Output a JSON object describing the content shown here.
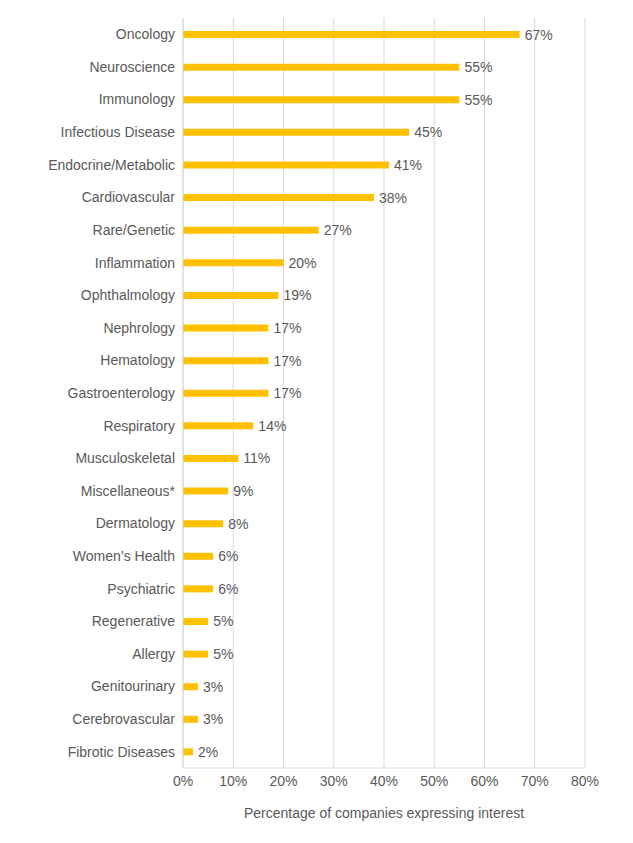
{
  "chart_data": {
    "type": "bar",
    "orientation": "horizontal",
    "x_label": "Percentage of companies expressing interest",
    "categories": [
      "Oncology",
      "Neuroscience",
      "Immunology",
      "Infectious Disease",
      "Endocrine/Metabolic",
      "Cardiovascular",
      "Rare/Genetic",
      "Inflammation",
      "Ophthalmology",
      "Nephrology",
      "Hematology",
      "Gastroenterology",
      "Respiratory",
      "Musculoskeletal",
      "Miscellaneous*",
      "Dermatology",
      "Women’s Health",
      "Psychiatric",
      "Regenerative",
      "Allergy",
      "Genitourinary",
      "Cerebrovascular",
      "Fibrotic Diseases"
    ],
    "values": [
      67,
      55,
      55,
      45,
      41,
      38,
      27,
      20,
      19,
      17,
      17,
      17,
      14,
      11,
      9,
      8,
      6,
      6,
      5,
      5,
      3,
      3,
      2
    ],
    "value_labels": [
      "67%",
      "55%",
      "55%",
      "45%",
      "41%",
      "38%",
      "27%",
      "20%",
      "19%",
      "17%",
      "17%",
      "17%",
      "14%",
      "11%",
      "9%",
      "8%",
      "6%",
      "6%",
      "5%",
      "5%",
      "3%",
      "3%",
      "2%"
    ],
    "color": "#ffc000",
    "xlim": [
      0,
      80
    ],
    "xticks": [
      {
        "value": 0,
        "label": "0%"
      },
      {
        "value": 10,
        "label": "10%"
      },
      {
        "value": 20,
        "label": "20%"
      },
      {
        "value": 30,
        "label": "30%"
      },
      {
        "value": 40,
        "label": "40%"
      },
      {
        "value": 50,
        "label": "50%"
      },
      {
        "value": 60,
        "label": "60%"
      },
      {
        "value": 70,
        "label": "70%"
      },
      {
        "value": 80,
        "label": "80%"
      }
    ],
    "grid": true,
    "data_labels": true
  }
}
